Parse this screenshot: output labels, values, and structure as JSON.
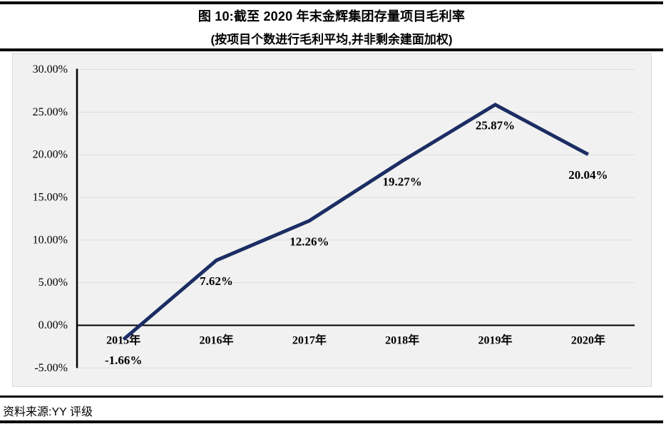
{
  "figure": {
    "title": "图 10:截至 2020 年末金辉集团存量项目毛利率",
    "subtitle": "(按项目个数进行毛利平均,并非剩余建面加权)",
    "source": "资料来源:YY 评级"
  },
  "chart_data": {
    "type": "line",
    "title": "截至 2020 年末金辉集团存量项目毛利率",
    "categories": [
      "2015年",
      "2016年",
      "2017年",
      "2018年",
      "2019年",
      "2020年"
    ],
    "series": [
      {
        "name": "存量项目毛利率",
        "values": [
          -1.66,
          7.62,
          12.26,
          19.27,
          25.87,
          20.04
        ]
      }
    ],
    "value_labels": [
      "-1.66%",
      "7.62%",
      "12.26%",
      "19.27%",
      "25.87%",
      "20.04%"
    ],
    "xlabel": "",
    "ylabel": "",
    "ylim": [
      -5,
      30
    ],
    "ytick_step": 5,
    "ytick_labels": [
      "-5.00%",
      "0.00%",
      "5.00%",
      "10.00%",
      "15.00%",
      "20.00%",
      "25.00%",
      "30.00%"
    ],
    "grid": true,
    "legend_position": "none",
    "label_position": "below",
    "line_color": "#1b2d63",
    "plot_bg": "#f1f1f1",
    "grid_color": "#dcdcdc",
    "axis_color": "#000000",
    "text_color": "#000000"
  }
}
